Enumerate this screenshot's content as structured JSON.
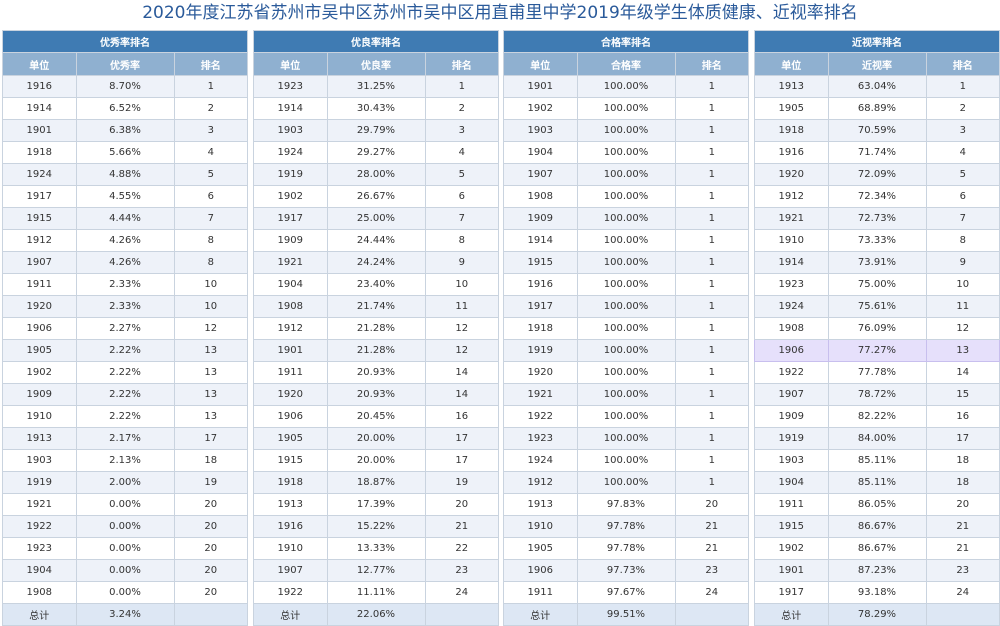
{
  "title": "2020年度江苏省苏州市吴中区苏州市吴中区用直甫里中学2019年级学生体质健康、近视率排名",
  "panels": [
    {
      "caption": "优秀率排名",
      "headers": [
        "单位",
        "优秀率",
        "排名"
      ],
      "rows": [
        [
          "1916",
          "8.70%",
          "1"
        ],
        [
          "1914",
          "6.52%",
          "2"
        ],
        [
          "1901",
          "6.38%",
          "3"
        ],
        [
          "1918",
          "5.66%",
          "4"
        ],
        [
          "1924",
          "4.88%",
          "5"
        ],
        [
          "1917",
          "4.55%",
          "6"
        ],
        [
          "1915",
          "4.44%",
          "7"
        ],
        [
          "1912",
          "4.26%",
          "8"
        ],
        [
          "1907",
          "4.26%",
          "8"
        ],
        [
          "1911",
          "2.33%",
          "10"
        ],
        [
          "1920",
          "2.33%",
          "10"
        ],
        [
          "1906",
          "2.27%",
          "12"
        ],
        [
          "1905",
          "2.22%",
          "13"
        ],
        [
          "1902",
          "2.22%",
          "13"
        ],
        [
          "1909",
          "2.22%",
          "13"
        ],
        [
          "1910",
          "2.22%",
          "13"
        ],
        [
          "1913",
          "2.17%",
          "17"
        ],
        [
          "1903",
          "2.13%",
          "18"
        ],
        [
          "1919",
          "2.00%",
          "19"
        ],
        [
          "1921",
          "0.00%",
          "20"
        ],
        [
          "1922",
          "0.00%",
          "20"
        ],
        [
          "1923",
          "0.00%",
          "20"
        ],
        [
          "1904",
          "0.00%",
          "20"
        ],
        [
          "1908",
          "0.00%",
          "20"
        ]
      ],
      "total": [
        "总计",
        "3.24%",
        ""
      ]
    },
    {
      "caption": "优良率排名",
      "headers": [
        "单位",
        "优良率",
        "排名"
      ],
      "rows": [
        [
          "1923",
          "31.25%",
          "1"
        ],
        [
          "1914",
          "30.43%",
          "2"
        ],
        [
          "1903",
          "29.79%",
          "3"
        ],
        [
          "1924",
          "29.27%",
          "4"
        ],
        [
          "1919",
          "28.00%",
          "5"
        ],
        [
          "1902",
          "26.67%",
          "6"
        ],
        [
          "1917",
          "25.00%",
          "7"
        ],
        [
          "1909",
          "24.44%",
          "8"
        ],
        [
          "1921",
          "24.24%",
          "9"
        ],
        [
          "1904",
          "23.40%",
          "10"
        ],
        [
          "1908",
          "21.74%",
          "11"
        ],
        [
          "1912",
          "21.28%",
          "12"
        ],
        [
          "1901",
          "21.28%",
          "12"
        ],
        [
          "1911",
          "20.93%",
          "14"
        ],
        [
          "1920",
          "20.93%",
          "14"
        ],
        [
          "1906",
          "20.45%",
          "16"
        ],
        [
          "1905",
          "20.00%",
          "17"
        ],
        [
          "1915",
          "20.00%",
          "17"
        ],
        [
          "1918",
          "18.87%",
          "19"
        ],
        [
          "1913",
          "17.39%",
          "20"
        ],
        [
          "1916",
          "15.22%",
          "21"
        ],
        [
          "1910",
          "13.33%",
          "22"
        ],
        [
          "1907",
          "12.77%",
          "23"
        ],
        [
          "1922",
          "11.11%",
          "24"
        ]
      ],
      "total": [
        "总计",
        "22.06%",
        ""
      ]
    },
    {
      "caption": "合格率排名",
      "headers": [
        "单位",
        "合格率",
        "排名"
      ],
      "rows": [
        [
          "1901",
          "100.00%",
          "1"
        ],
        [
          "1902",
          "100.00%",
          "1"
        ],
        [
          "1903",
          "100.00%",
          "1"
        ],
        [
          "1904",
          "100.00%",
          "1"
        ],
        [
          "1907",
          "100.00%",
          "1"
        ],
        [
          "1908",
          "100.00%",
          "1"
        ],
        [
          "1909",
          "100.00%",
          "1"
        ],
        [
          "1914",
          "100.00%",
          "1"
        ],
        [
          "1915",
          "100.00%",
          "1"
        ],
        [
          "1916",
          "100.00%",
          "1"
        ],
        [
          "1917",
          "100.00%",
          "1"
        ],
        [
          "1918",
          "100.00%",
          "1"
        ],
        [
          "1919",
          "100.00%",
          "1"
        ],
        [
          "1920",
          "100.00%",
          "1"
        ],
        [
          "1921",
          "100.00%",
          "1"
        ],
        [
          "1922",
          "100.00%",
          "1"
        ],
        [
          "1923",
          "100.00%",
          "1"
        ],
        [
          "1924",
          "100.00%",
          "1"
        ],
        [
          "1912",
          "100.00%",
          "1"
        ],
        [
          "1913",
          "97.83%",
          "20"
        ],
        [
          "1910",
          "97.78%",
          "21"
        ],
        [
          "1905",
          "97.78%",
          "21"
        ],
        [
          "1906",
          "97.73%",
          "23"
        ],
        [
          "1911",
          "97.67%",
          "24"
        ]
      ],
      "total": [
        "总计",
        "99.51%",
        ""
      ]
    },
    {
      "caption": "近视率排名",
      "headers": [
        "单位",
        "近视率",
        "排名"
      ],
      "rows": [
        [
          "1913",
          "63.04%",
          "1"
        ],
        [
          "1905",
          "68.89%",
          "2"
        ],
        [
          "1918",
          "70.59%",
          "3"
        ],
        [
          "1916",
          "71.74%",
          "4"
        ],
        [
          "1920",
          "72.09%",
          "5"
        ],
        [
          "1912",
          "72.34%",
          "6"
        ],
        [
          "1921",
          "72.73%",
          "7"
        ],
        [
          "1910",
          "73.33%",
          "8"
        ],
        [
          "1914",
          "73.91%",
          "9"
        ],
        [
          "1923",
          "75.00%",
          "10"
        ],
        [
          "1924",
          "75.61%",
          "11"
        ],
        [
          "1908",
          "76.09%",
          "12"
        ],
        [
          "1906",
          "77.27%",
          "13"
        ],
        [
          "1922",
          "77.78%",
          "14"
        ],
        [
          "1907",
          "78.72%",
          "15"
        ],
        [
          "1909",
          "82.22%",
          "16"
        ],
        [
          "1919",
          "84.00%",
          "17"
        ],
        [
          "1903",
          "85.11%",
          "18"
        ],
        [
          "1904",
          "85.11%",
          "18"
        ],
        [
          "1911",
          "86.05%",
          "20"
        ],
        [
          "1915",
          "86.67%",
          "21"
        ],
        [
          "1902",
          "86.67%",
          "21"
        ],
        [
          "1901",
          "87.23%",
          "23"
        ],
        [
          "1917",
          "93.18%",
          "24"
        ]
      ],
      "total": [
        "总计",
        "78.29%",
        ""
      ],
      "highlight_row": 12
    }
  ]
}
